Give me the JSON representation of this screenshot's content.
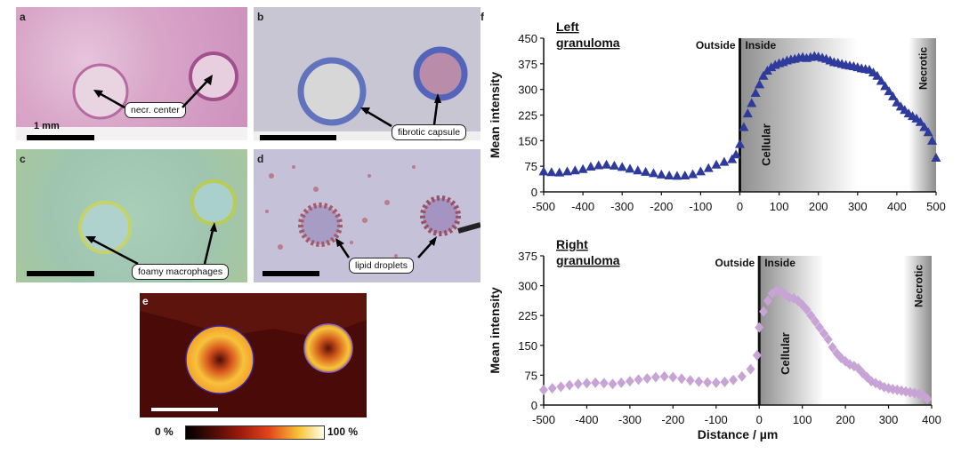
{
  "panels": {
    "a": {
      "letter": "a",
      "tag": "necr. center",
      "scale": "1 mm"
    },
    "b": {
      "letter": "b",
      "tag": "fibrotic capsule"
    },
    "c": {
      "letter": "c",
      "tag": "foamy macrophages"
    },
    "d": {
      "letter": "d",
      "tag": "lipid droplets"
    },
    "e": {
      "letter": "e",
      "cbar_min": "0 %",
      "cbar_max": "100 %"
    },
    "f": {
      "letter": "f"
    }
  },
  "colors": {
    "left_series": "#2e3a9c",
    "right_series": "#c7a3d6"
  },
  "chart_data": [
    {
      "type": "scatter",
      "title": "Left granuloma",
      "ylabel": "Mean intensity",
      "xlabel": "",
      "xlim": [
        -500,
        500
      ],
      "ylim": [
        0,
        450
      ],
      "xticks": [
        -500,
        -400,
        -300,
        -200,
        -100,
        0,
        100,
        200,
        300,
        400,
        500
      ],
      "yticks": [
        0,
        75,
        150,
        225,
        300,
        375,
        450
      ],
      "annotations": {
        "outside": "Outside",
        "inside": "Inside",
        "cellular": "Cellular",
        "necrotic": "Necrotic"
      },
      "regions": {
        "boundary": 0,
        "cellular_gradient": [
          0,
          300
        ],
        "necrotic": [
          430,
          500
        ]
      },
      "marker": "triangle",
      "series": [
        {
          "color": "#2e3a9c",
          "points": [
            [
              -500,
              60
            ],
            [
              -480,
              58
            ],
            [
              -460,
              57
            ],
            [
              -440,
              60
            ],
            [
              -420,
              63
            ],
            [
              -400,
              67
            ],
            [
              -380,
              74
            ],
            [
              -360,
              78
            ],
            [
              -340,
              80
            ],
            [
              -320,
              77
            ],
            [
              -300,
              73
            ],
            [
              -280,
              68
            ],
            [
              -260,
              63
            ],
            [
              -240,
              59
            ],
            [
              -220,
              55
            ],
            [
              -200,
              51
            ],
            [
              -180,
              48
            ],
            [
              -160,
              47
            ],
            [
              -140,
              48
            ],
            [
              -120,
              52
            ],
            [
              -100,
              60
            ],
            [
              -80,
              70
            ],
            [
              -60,
              80
            ],
            [
              -40,
              88
            ],
            [
              -20,
              96
            ],
            [
              -10,
              110
            ],
            [
              0,
              140
            ],
            [
              10,
              190
            ],
            [
              20,
              230
            ],
            [
              30,
              260
            ],
            [
              40,
              290
            ],
            [
              50,
              315
            ],
            [
              60,
              340
            ],
            [
              70,
              355
            ],
            [
              80,
              365
            ],
            [
              90,
              372
            ],
            [
              100,
              377
            ],
            [
              110,
              380
            ],
            [
              120,
              385
            ],
            [
              130,
              388
            ],
            [
              140,
              390
            ],
            [
              150,
              393
            ],
            [
              160,
              395
            ],
            [
              170,
              392
            ],
            [
              180,
              395
            ],
            [
              190,
              398
            ],
            [
              200,
              396
            ],
            [
              210,
              393
            ],
            [
              220,
              390
            ],
            [
              230,
              385
            ],
            [
              240,
              380
            ],
            [
              250,
              378
            ],
            [
              260,
              375
            ],
            [
              270,
              372
            ],
            [
              280,
              370
            ],
            [
              290,
              368
            ],
            [
              300,
              365
            ],
            [
              310,
              362
            ],
            [
              320,
              360
            ],
            [
              330,
              358
            ],
            [
              340,
              350
            ],
            [
              350,
              340
            ],
            [
              360,
              325
            ],
            [
              370,
              310
            ],
            [
              380,
              295
            ],
            [
              390,
              280
            ],
            [
              400,
              262
            ],
            [
              410,
              250
            ],
            [
              420,
              240
            ],
            [
              430,
              230
            ],
            [
              440,
              222
            ],
            [
              450,
              215
            ],
            [
              460,
              205
            ],
            [
              470,
              190
            ],
            [
              480,
              175
            ],
            [
              490,
              150
            ],
            [
              500,
              100
            ]
          ]
        }
      ]
    },
    {
      "type": "scatter",
      "title": "Right granuloma",
      "ylabel": "Mean intensity",
      "xlabel": "Distance / µm",
      "xlim": [
        -500,
        400
      ],
      "ylim": [
        0,
        375
      ],
      "xticks": [
        -500,
        -400,
        -300,
        -200,
        -100,
        0,
        100,
        200,
        300,
        400
      ],
      "yticks": [
        0,
        75,
        150,
        225,
        300,
        375
      ],
      "annotations": {
        "outside": "Outside",
        "inside": "Inside",
        "cellular": "Cellular",
        "necrotic": "Necrotic"
      },
      "regions": {
        "boundary": 0,
        "cellular_gradient": [
          0,
          150
        ],
        "necrotic": [
          335,
          400
        ]
      },
      "marker": "diamond",
      "series": [
        {
          "color": "#c7a3d6",
          "points": [
            [
              -500,
              38
            ],
            [
              -480,
              42
            ],
            [
              -460,
              46
            ],
            [
              -440,
              50
            ],
            [
              -420,
              53
            ],
            [
              -400,
              55
            ],
            [
              -380,
              56
            ],
            [
              -360,
              55
            ],
            [
              -340,
              53
            ],
            [
              -320,
              56
            ],
            [
              -300,
              60
            ],
            [
              -280,
              64
            ],
            [
              -260,
              67
            ],
            [
              -240,
              70
            ],
            [
              -220,
              72
            ],
            [
              -200,
              70
            ],
            [
              -180,
              66
            ],
            [
              -160,
              62
            ],
            [
              -140,
              59
            ],
            [
              -120,
              57
            ],
            [
              -100,
              56
            ],
            [
              -80,
              58
            ],
            [
              -60,
              63
            ],
            [
              -40,
              72
            ],
            [
              -20,
              90
            ],
            [
              -5,
              125
            ],
            [
              0,
              195
            ],
            [
              10,
              235
            ],
            [
              20,
              262
            ],
            [
              30,
              280
            ],
            [
              40,
              288
            ],
            [
              50,
              285
            ],
            [
              60,
              278
            ],
            [
              70,
              270
            ],
            [
              80,
              268
            ],
            [
              90,
              262
            ],
            [
              100,
              252
            ],
            [
              110,
              240
            ],
            [
              120,
              225
            ],
            [
              130,
              210
            ],
            [
              140,
              195
            ],
            [
              150,
              180
            ],
            [
              160,
              165
            ],
            [
              170,
              145
            ],
            [
              180,
              130
            ],
            [
              190,
              118
            ],
            [
              200,
              110
            ],
            [
              210,
              102
            ],
            [
              220,
              98
            ],
            [
              230,
              92
            ],
            [
              240,
              80
            ],
            [
              250,
              70
            ],
            [
              260,
              60
            ],
            [
              270,
              55
            ],
            [
              280,
              50
            ],
            [
              290,
              45
            ],
            [
              300,
              42
            ],
            [
              310,
              40
            ],
            [
              320,
              38
            ],
            [
              330,
              36
            ],
            [
              340,
              34
            ],
            [
              350,
              32
            ],
            [
              360,
              30
            ],
            [
              370,
              28
            ],
            [
              380,
              25
            ],
            [
              390,
              15
            ]
          ]
        }
      ]
    }
  ]
}
